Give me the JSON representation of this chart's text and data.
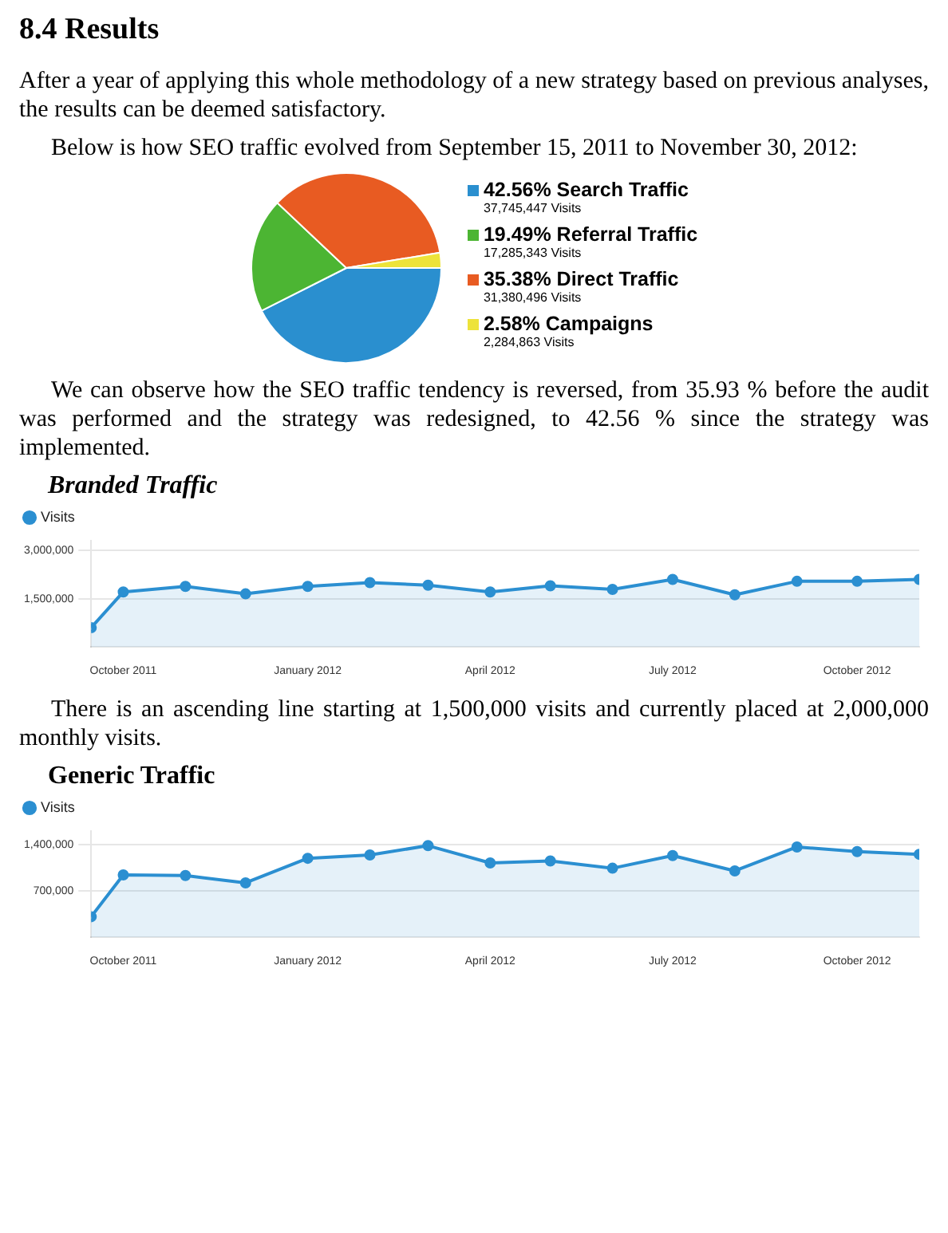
{
  "chart_data": [
    {
      "type": "pie",
      "title": "8.4 Results",
      "categories": [
        "Search Traffic",
        "Referral Traffic",
        "Direct Traffic",
        "Campaigns"
      ],
      "values": [
        42.56,
        19.49,
        35.38,
        2.58
      ],
      "value_labels": [
        "42.56%",
        "19.49%",
        "35.38%",
        "2.58%"
      ],
      "colors": [
        "#2a8fcf",
        "#4cb533",
        "#e85b22",
        "#ede33a"
      ],
      "legend": "right",
      "annotations": [
        "After a year of applying this whole methodology of a new strategy based on previous analyses, the results can be deemed satisfactory.",
        "Below is how SEO traffic evolved from September 15, 2011 to November 30, 2012:",
        {
          "text": "37,745,447 Visits",
          "x": "Search Traffic"
        },
        {
          "text": "17,285,343 Visits",
          "x": "Referral Traffic"
        },
        {
          "text": "31,380,496 Visits",
          "x": "Direct Traffic"
        },
        {
          "text": "2,284,863 Visits",
          "x": "Campaigns"
        },
        "We can observe how the SEO traffic tendency is reversed, from 35.93 % before the audit was performed and the strategy was redesigned, to 42.56 % since the strategy was implemented."
      ]
    },
    {
      "type": "area",
      "title": "Branded Traffic",
      "x": [
        "2011-09-15",
        "2011-10",
        "2011-11",
        "2011-12",
        "2012-01",
        "2012-02",
        "2012-03",
        "2012-04",
        "2012-05",
        "2012-06",
        "2012-07",
        "2012-08",
        "2012-09",
        "2012-10",
        "2012-11"
      ],
      "series": [
        {
          "name": "Visits",
          "color": "#2b8fd1",
          "values": [
            600000,
            1710000,
            1880000,
            1650000,
            1880000,
            2000000,
            1920000,
            1710000,
            1900000,
            1790000,
            2100000,
            1620000,
            2040000,
            2040000,
            2100000
          ]
        }
      ],
      "xlim": [
        "2011-09-15",
        "2012-11-01"
      ],
      "xticks": [
        {
          "value": "2011-10",
          "label": "October 2011"
        },
        {
          "value": "2012-01",
          "label": "January 2012"
        },
        {
          "value": "2012-04",
          "label": "April 2012"
        },
        {
          "value": "2012-07",
          "label": "July 2012"
        },
        {
          "value": "2012-10",
          "label": "October 2012"
        }
      ],
      "ylim": [
        0,
        3300000
      ],
      "yticks": [
        {
          "value": 1500000,
          "label": "1,500,000"
        },
        {
          "value": 3000000,
          "label": "3,000,000"
        }
      ],
      "grid": "y",
      "legend": "top left",
      "marker": "circle",
      "annotations": [
        "There is an ascending line starting at 1,500,000 visits and currently placed at 2,000,000 monthly visits."
      ]
    },
    {
      "type": "area",
      "title": "Generic Traffic",
      "x": [
        "2011-09-15",
        "2011-10",
        "2011-11",
        "2011-12",
        "2012-01",
        "2012-02",
        "2012-03",
        "2012-04",
        "2012-05",
        "2012-06",
        "2012-07",
        "2012-08",
        "2012-09",
        "2012-10",
        "2012-11"
      ],
      "series": [
        {
          "name": "Visits",
          "color": "#2b8fd1",
          "values": [
            310000,
            940000,
            930000,
            820000,
            1190000,
            1240000,
            1380000,
            1120000,
            1150000,
            1040000,
            1230000,
            1000000,
            1360000,
            1290000,
            1250000
          ]
        }
      ],
      "xlim": [
        "2011-09-15",
        "2012-11-01"
      ],
      "xticks": [
        {
          "value": "2011-10",
          "label": "October 2011"
        },
        {
          "value": "2012-01",
          "label": "January 2012"
        },
        {
          "value": "2012-04",
          "label": "April 2012"
        },
        {
          "value": "2012-07",
          "label": "July 2012"
        },
        {
          "value": "2012-10",
          "label": "October 2012"
        }
      ],
      "ylim": [
        0,
        1600000
      ],
      "yticks": [
        {
          "value": 700000,
          "label": "700,000"
        },
        {
          "value": 1400000,
          "label": "1,400,000"
        }
      ],
      "grid": "y",
      "legend": "top left",
      "marker": "circle"
    }
  ]
}
